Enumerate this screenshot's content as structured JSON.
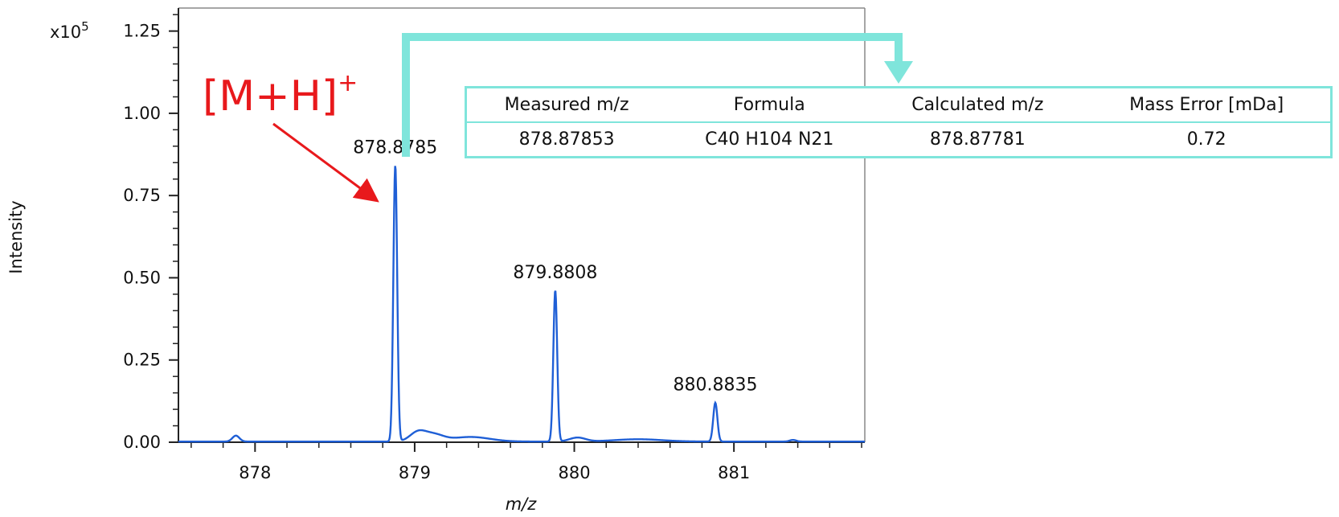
{
  "chart_data": {
    "type": "line",
    "title": "",
    "xlabel": "m/z",
    "ylabel": "Intensity",
    "y_multiplier": "x10",
    "y_multiplier_exp": "5",
    "xlim": [
      877.52,
      881.82
    ],
    "ylim": [
      0,
      1.32
    ],
    "x_ticks": [
      878,
      879,
      880,
      881
    ],
    "y_ticks": [
      "0.00",
      "0.25",
      "0.50",
      "0.75",
      "1.00",
      "1.25"
    ],
    "grid": false,
    "series": [
      {
        "color": "#1f5fd6",
        "peaks": [
          {
            "x": 877.88,
            "y": 0.018,
            "w": 0.022
          },
          {
            "x": 878.8785,
            "y": 0.84,
            "w": 0.012
          },
          {
            "x": 879.02,
            "y": 0.028,
            "w": 0.05
          },
          {
            "x": 879.12,
            "y": 0.02,
            "w": 0.06
          },
          {
            "x": 879.35,
            "y": 0.014,
            "w": 0.12
          },
          {
            "x": 879.8808,
            "y": 0.46,
            "w": 0.012
          },
          {
            "x": 880.02,
            "y": 0.012,
            "w": 0.05
          },
          {
            "x": 880.4,
            "y": 0.007,
            "w": 0.15
          },
          {
            "x": 880.8835,
            "y": 0.118,
            "w": 0.013
          },
          {
            "x": 881.37,
            "y": 0.005,
            "w": 0.02
          }
        ]
      }
    ],
    "annotations": [
      {
        "text": "878.8785",
        "x": 878.8785,
        "y": 0.84
      },
      {
        "text": "879.8808",
        "x": 879.8808,
        "y": 0.46
      },
      {
        "text": "880.8835",
        "x": 880.8835,
        "y": 0.118
      }
    ]
  },
  "ion_label": "[M+H]",
  "ion_charge": "+",
  "colors": {
    "spectrum": "#1f5fd6",
    "annotation": "#e8191c",
    "highlight": "#7fe5db"
  },
  "result_table": {
    "headers": [
      "Measured m/z",
      "Formula",
      "Calculated m/z",
      "Mass Error [mDa]"
    ],
    "rows": [
      [
        "878.87853",
        "C40 H104 N21",
        "878.87781",
        "0.72"
      ]
    ]
  }
}
